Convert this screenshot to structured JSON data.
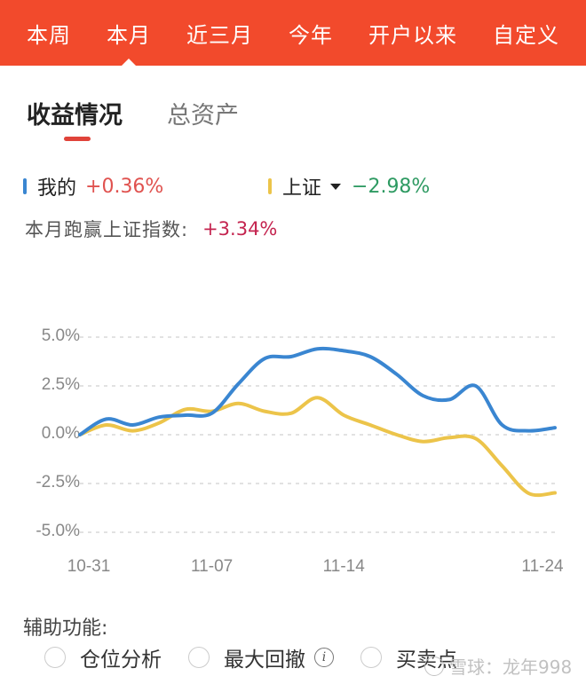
{
  "period_tabs": {
    "items": [
      {
        "label": "本周",
        "active": false
      },
      {
        "label": "本月",
        "active": true
      },
      {
        "label": "近三月",
        "active": false
      },
      {
        "label": "今年",
        "active": false
      },
      {
        "label": "开户以来",
        "active": false
      },
      {
        "label": "自定义",
        "active": false
      }
    ]
  },
  "sub_tabs": {
    "items": [
      {
        "label": "收益情况",
        "active": true
      },
      {
        "label": "总资产",
        "active": false
      }
    ]
  },
  "legend": {
    "mine": {
      "label": "我的",
      "value": "+0.36%",
      "color": "#3a86d1",
      "value_color": "#e0524f"
    },
    "index": {
      "label": "上证",
      "value": "−2.98%",
      "color": "#ecc44a",
      "value_color": "#2e9a62",
      "dropdown_icon": "caret-down-icon"
    }
  },
  "beat": {
    "label": "本月跑赢上证指数:",
    "value": "+3.34%",
    "value_color": "#c4244f"
  },
  "chart_data": {
    "type": "line",
    "title": "",
    "xlabel": "",
    "ylabel": "",
    "ylim": [
      -5.0,
      5.0
    ],
    "y_ticks": [
      "5.0%",
      "2.5%",
      "0.0%",
      "-2.5%",
      "-5.0%"
    ],
    "x_ticks": [
      "10-31",
      "11-07",
      "11-14",
      "11-24"
    ],
    "grid": "dashed horizontal",
    "legend_position": "top",
    "x": [
      "10-31",
      "11-01",
      "11-02",
      "11-03",
      "11-04",
      "11-07",
      "11-08",
      "11-09",
      "11-10",
      "11-11",
      "11-14",
      "11-15",
      "11-16",
      "11-17",
      "11-18",
      "11-21",
      "11-22",
      "11-23",
      "11-24"
    ],
    "series": [
      {
        "name": "我的",
        "color": "#3a86d1",
        "values": [
          0.0,
          0.8,
          0.5,
          0.9,
          1.0,
          1.1,
          2.6,
          3.9,
          4.0,
          4.4,
          4.3,
          4.0,
          3.1,
          2.0,
          1.8,
          2.5,
          0.5,
          0.2,
          0.36
        ]
      },
      {
        "name": "上证",
        "color": "#ecc44a",
        "values": [
          0.0,
          0.5,
          0.2,
          0.6,
          1.3,
          1.2,
          1.6,
          1.2,
          1.1,
          1.9,
          1.0,
          0.5,
          0.0,
          -0.35,
          -0.15,
          -0.2,
          -1.6,
          -3.0,
          -2.98
        ]
      }
    ]
  },
  "aux": {
    "title": "辅助功能:",
    "options": [
      {
        "label": "仓位分析",
        "checked": false
      },
      {
        "label": "最大回撤",
        "checked": false,
        "info_icon": "info-icon"
      },
      {
        "label": "买卖点",
        "checked": false
      }
    ]
  },
  "watermark": {
    "text": "雪球：龙年998"
  }
}
